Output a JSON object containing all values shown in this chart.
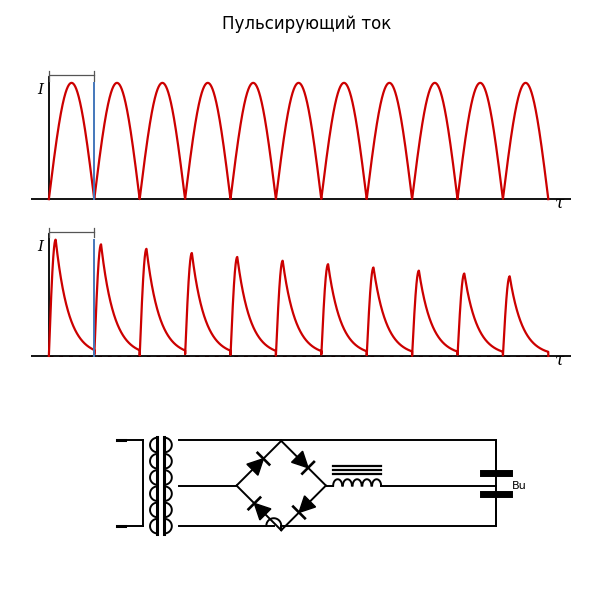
{
  "title": "Пульсирующий ток",
  "title_fontsize": 12,
  "background_color": "#ffffff",
  "wave1_color": "#cc0000",
  "wave2_color": "#cc0000",
  "blue_line_color": "#4477bb",
  "dashed_color": "#cc0000",
  "tau_label": "τ",
  "I_label": "I",
  "n_cycles_wave1": 11,
  "n_cycles_wave2": 11
}
